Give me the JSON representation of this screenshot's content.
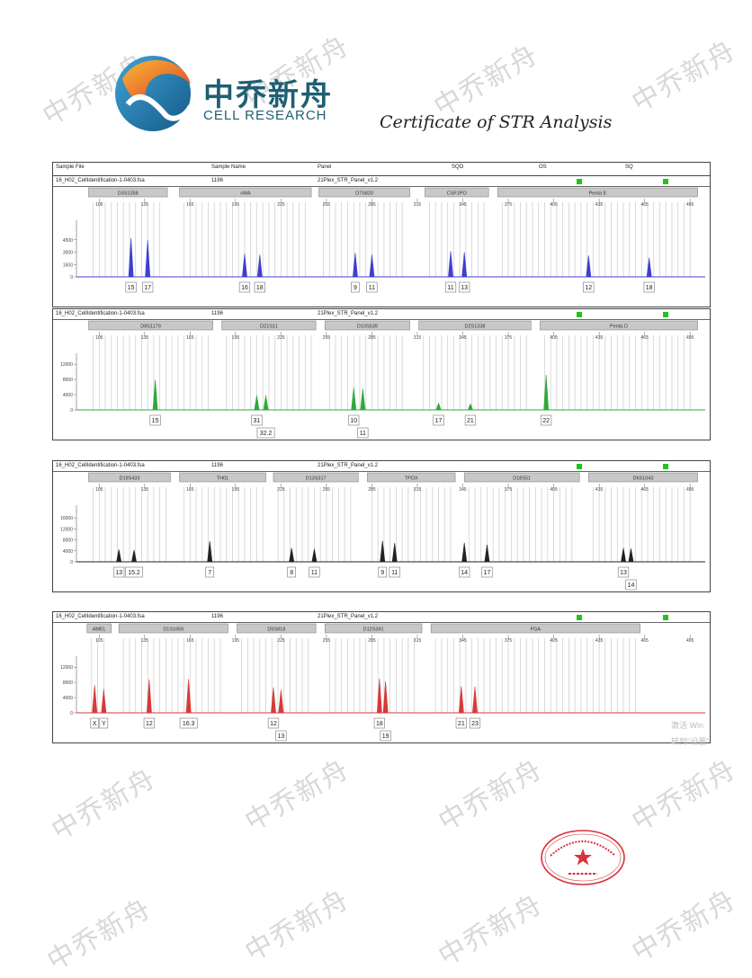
{
  "watermark_text": "中乔新舟",
  "header": {
    "brand_cn": "中乔新舟",
    "brand_en": "CELL RESEARCH",
    "certificate_title": "Certificate of STR Analysis"
  },
  "sample_header": {
    "col_sample_file": "Sample File",
    "col_sample_name": "Sample Name",
    "col_panel": "Panel",
    "col_sqo": "SQO",
    "col_os": "OS",
    "col_sq": "SQ"
  },
  "size_ticks": [
    "105",
    "135",
    "165",
    "195",
    "225",
    "255",
    "285",
    "315",
    "345",
    "375",
    "405",
    "435",
    "465",
    "495"
  ],
  "panels": [
    {
      "file": "16_H02_CellIdentification-1-0403.fsa",
      "sample": "1196",
      "panel": "21Plex_STR_Panel_v1.2",
      "color": "#3f3fd0",
      "y_ticks": [
        "4500",
        "3000",
        "1500",
        "0"
      ],
      "y_max": 6000,
      "loci": [
        {
          "name": "D3S1358",
          "from": 98,
          "to": 150
        },
        {
          "name": "vWA",
          "from": 158,
          "to": 245
        },
        {
          "name": "D7S820",
          "from": 250,
          "to": 310
        },
        {
          "name": "CSF1PO",
          "from": 320,
          "to": 362
        },
        {
          "name": "Penta E",
          "from": 368,
          "to": 500
        }
      ],
      "peaks": [
        {
          "pos": 126,
          "height": 4700,
          "label": "15",
          "row": 0
        },
        {
          "pos": 137,
          "height": 4500,
          "label": "17",
          "row": 0
        },
        {
          "pos": 201,
          "height": 2800,
          "label": "16",
          "row": 0
        },
        {
          "pos": 211,
          "height": 2700,
          "label": "18",
          "row": 0
        },
        {
          "pos": 274,
          "height": 2900,
          "label": "9",
          "row": 0
        },
        {
          "pos": 285,
          "height": 2700,
          "label": "11",
          "row": 0
        },
        {
          "pos": 337,
          "height": 3100,
          "label": "11",
          "row": 0
        },
        {
          "pos": 346,
          "height": 3000,
          "label": "13",
          "row": 0
        },
        {
          "pos": 428,
          "height": 2600,
          "label": "12",
          "row": 0
        },
        {
          "pos": 468,
          "height": 2300,
          "label": "18",
          "row": 0
        }
      ]
    },
    {
      "file": "16_H02_CellIdentification-1-0403.fsa",
      "sample": "1196",
      "panel": "21Plex_STR_Panel_v1.2",
      "color": "#2fa83a",
      "y_ticks": [
        "12000",
        "8000",
        "4000",
        "0"
      ],
      "y_max": 13000,
      "loci": [
        {
          "name": "D8S1179",
          "from": 98,
          "to": 180
        },
        {
          "name": "D21S11",
          "from": 186,
          "to": 248
        },
        {
          "name": "D10S539",
          "from": 254,
          "to": 310
        },
        {
          "name": "D2S1338",
          "from": 316,
          "to": 390
        },
        {
          "name": "Penta D",
          "from": 396,
          "to": 500
        }
      ],
      "peaks": [
        {
          "pos": 142,
          "height": 7900,
          "label": "15",
          "row": 0
        },
        {
          "pos": 209,
          "height": 3800,
          "label": "31",
          "row": 0
        },
        {
          "pos": 215,
          "height": 3800,
          "label": "32.2",
          "row": 1
        },
        {
          "pos": 273,
          "height": 5800,
          "label": "10",
          "row": 0
        },
        {
          "pos": 279,
          "height": 5600,
          "label": "11",
          "row": 1
        },
        {
          "pos": 329,
          "height": 1800,
          "label": "17",
          "row": 0
        },
        {
          "pos": 350,
          "height": 1600,
          "label": "21",
          "row": 0
        },
        {
          "pos": 400,
          "height": 9200,
          "label": "22",
          "row": 0
        }
      ]
    },
    {
      "file": "16_H02_CellIdentification-1-0403.fsa",
      "sample": "1196",
      "panel": "21Plex_STR_Panel_v1.2",
      "color": "#222222",
      "y_ticks": [
        "16000",
        "12000",
        "8000",
        "4000",
        "0"
      ],
      "y_max": 18000,
      "loci": [
        {
          "name": "D19S433",
          "from": 98,
          "to": 152
        },
        {
          "name": "TH01",
          "from": 158,
          "to": 215
        },
        {
          "name": "D13S317",
          "from": 220,
          "to": 276
        },
        {
          "name": "TPOX",
          "from": 282,
          "to": 340
        },
        {
          "name": "D18S51",
          "from": 346,
          "to": 422
        },
        {
          "name": "D6S1043",
          "from": 428,
          "to": 500
        }
      ],
      "peaks": [
        {
          "pos": 118,
          "height": 4500,
          "label": "13",
          "row": 0
        },
        {
          "pos": 128,
          "height": 4300,
          "label": "15.2",
          "row": 0
        },
        {
          "pos": 178,
          "height": 7500,
          "label": "7",
          "row": 0
        },
        {
          "pos": 232,
          "height": 5000,
          "label": "8",
          "row": 0
        },
        {
          "pos": 247,
          "height": 4700,
          "label": "11",
          "row": 0
        },
        {
          "pos": 292,
          "height": 7600,
          "label": "9",
          "row": 0
        },
        {
          "pos": 300,
          "height": 6800,
          "label": "11",
          "row": 0
        },
        {
          "pos": 346,
          "height": 6900,
          "label": "14",
          "row": 0
        },
        {
          "pos": 361,
          "height": 6200,
          "label": "17",
          "row": 0
        },
        {
          "pos": 451,
          "height": 5000,
          "label": "13",
          "row": 0
        },
        {
          "pos": 456,
          "height": 4800,
          "label": "14",
          "row": 1
        }
      ]
    },
    {
      "file": "16_H02_CellIdentification-1-0403.fsa",
      "sample": "1196",
      "panel": "21Plex_STR_Panel_v1.2",
      "color": "#d63a3a",
      "y_ticks": [
        "12000",
        "8000",
        "4000",
        "0"
      ],
      "y_max": 13000,
      "loci": [
        {
          "name": "AMEL",
          "from": 97,
          "to": 113
        },
        {
          "name": "D1S1656",
          "from": 118,
          "to": 190
        },
        {
          "name": "D5S818",
          "from": 196,
          "to": 248
        },
        {
          "name": "D12S391",
          "from": 254,
          "to": 318
        },
        {
          "name": "FGA",
          "from": 324,
          "to": 462
        }
      ],
      "peaks": [
        {
          "pos": 102,
          "height": 7300,
          "label": "X",
          "row": 0
        },
        {
          "pos": 108,
          "height": 6200,
          "label": "Y",
          "row": 0
        },
        {
          "pos": 138,
          "height": 8800,
          "label": "12",
          "row": 0
        },
        {
          "pos": 164,
          "height": 8900,
          "label": "16.3",
          "row": 0
        },
        {
          "pos": 220,
          "height": 6700,
          "label": "12",
          "row": 0
        },
        {
          "pos": 225,
          "height": 6000,
          "label": "13",
          "row": 1
        },
        {
          "pos": 290,
          "height": 9000,
          "label": "18",
          "row": 0
        },
        {
          "pos": 294,
          "height": 8300,
          "label": "19",
          "row": 1
        },
        {
          "pos": 344,
          "height": 7000,
          "label": "21",
          "row": 0
        },
        {
          "pos": 353,
          "height": 6900,
          "label": "23",
          "row": 0
        }
      ]
    }
  ],
  "ghost_text": [
    "激活 Win",
    "转到\"设置\""
  ]
}
